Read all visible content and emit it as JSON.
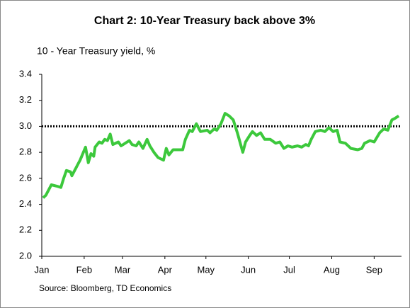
{
  "chart_data": {
    "type": "line",
    "title": "Chart 2: 10-Year Treasury back above 3%",
    "y_axis_label": "10 - Year Treasury yield, %",
    "source": "Source: Bloomberg, TD Economics",
    "color": "#3cc83c",
    "reference_line": {
      "value": 3,
      "color": "#000000"
    },
    "x": [
      1,
      3,
      7,
      11,
      14,
      16,
      18,
      21,
      22,
      25,
      26,
      28,
      32,
      34,
      36,
      38,
      39,
      42,
      44,
      46,
      48,
      50,
      52,
      56,
      58,
      61,
      64,
      66,
      69,
      71,
      74,
      77,
      79,
      82,
      85,
      89,
      91,
      93,
      96,
      99,
      103,
      105,
      108,
      110,
      113,
      116,
      121,
      123,
      126,
      128,
      131,
      134,
      137,
      140,
      143,
      147,
      149,
      152,
      154,
      157,
      160,
      163,
      167,
      171,
      174,
      177,
      180,
      183,
      187,
      190,
      193,
      195,
      197,
      200,
      204,
      207,
      210,
      213,
      216,
      218,
      222,
      226,
      231,
      234,
      236,
      240,
      243,
      247,
      250,
      253,
      256,
      258,
      261
    ],
    "values": [
      2.45,
      2.47,
      2.55,
      2.54,
      2.53,
      2.6,
      2.66,
      2.65,
      2.62,
      2.68,
      2.7,
      2.74,
      2.84,
      2.72,
      2.79,
      2.77,
      2.84,
      2.88,
      2.87,
      2.9,
      2.89,
      2.94,
      2.86,
      2.88,
      2.85,
      2.87,
      2.89,
      2.86,
      2.85,
      2.88,
      2.83,
      2.9,
      2.85,
      2.8,
      2.76,
      2.74,
      2.83,
      2.78,
      2.82,
      2.82,
      2.82,
      2.9,
      2.97,
      2.96,
      3.02,
      2.96,
      2.97,
      2.95,
      2.98,
      2.97,
      3.02,
      3.1,
      3.08,
      3.05,
      2.95,
      2.8,
      2.88,
      2.93,
      2.96,
      2.93,
      2.95,
      2.9,
      2.9,
      2.87,
      2.88,
      2.83,
      2.85,
      2.84,
      2.85,
      2.84,
      2.86,
      2.85,
      2.9,
      2.96,
      2.97,
      2.96,
      2.99,
      2.96,
      2.97,
      2.88,
      2.87,
      2.83,
      2.82,
      2.83,
      2.87,
      2.89,
      2.88,
      2.95,
      2.98,
      2.97,
      3.05,
      3.06,
      3.08
    ],
    "xlim": [
      0,
      263
    ],
    "xticks": [
      {
        "value": 0,
        "label": "Jan"
      },
      {
        "value": 31,
        "label": "Feb"
      },
      {
        "value": 59,
        "label": "Mar"
      },
      {
        "value": 90,
        "label": "Apr"
      },
      {
        "value": 120,
        "label": "May"
      },
      {
        "value": 151,
        "label": "Jun"
      },
      {
        "value": 181,
        "label": "Jul"
      },
      {
        "value": 212,
        "label": "Aug"
      },
      {
        "value": 243,
        "label": "Sep"
      }
    ],
    "ylim": [
      2,
      3.4
    ],
    "yticks": [
      {
        "value": 2,
        "label": "2.0"
      },
      2.2,
      2.4,
      2.6,
      2.8,
      {
        "value": 3,
        "label": "3.0"
      },
      3.2,
      3.4
    ],
    "grid": false
  }
}
